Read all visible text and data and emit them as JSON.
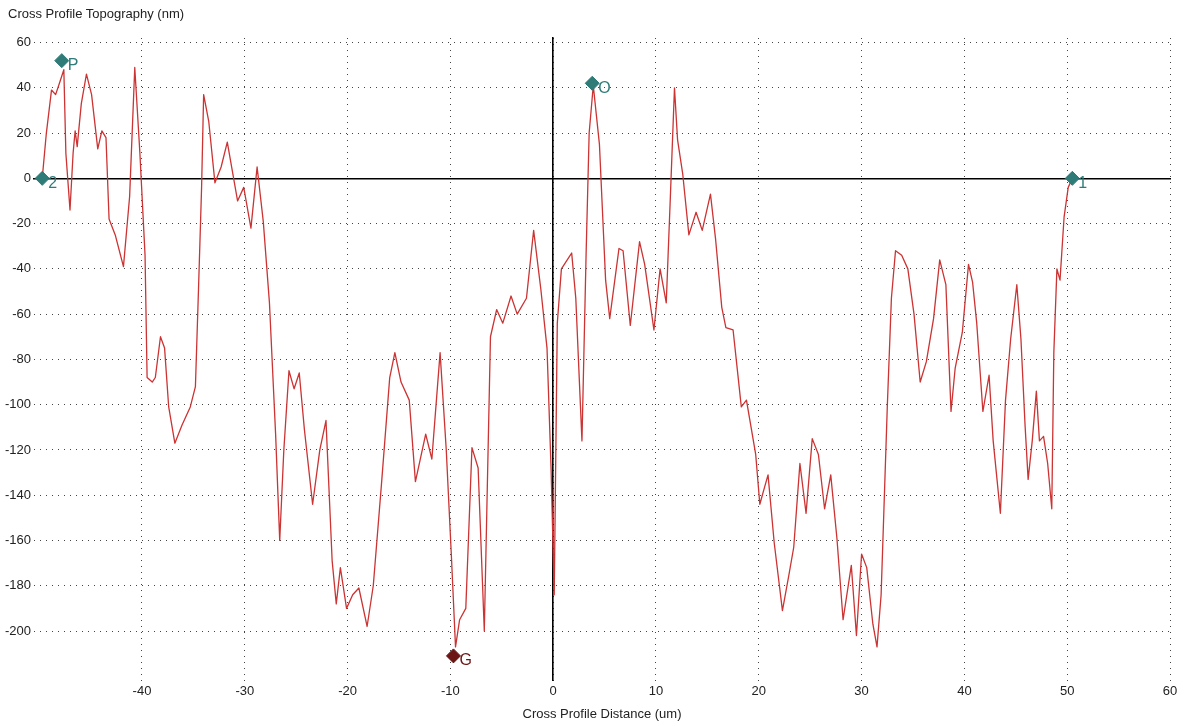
{
  "chart_data": {
    "type": "line",
    "ylabel": "Cross Profile Topography (nm)",
    "xlabel": "Cross Profile Distance (um)",
    "xlim": [
      -50.5,
      60
    ],
    "xticks": [
      -40,
      -30,
      -20,
      -10,
      0,
      10,
      20,
      30,
      40,
      50,
      60
    ],
    "ylim": [
      -222,
      62
    ],
    "yticks": [
      -200,
      -180,
      -160,
      -140,
      -120,
      -100,
      -80,
      -60,
      -40,
      -20,
      0,
      20,
      40,
      60
    ],
    "grid": true,
    "legend": false,
    "series": [
      {
        "color": "#cc3333",
        "marker": "none",
        "x": [
          -49.7,
          -49.3,
          -48.8,
          -48.4,
          -48.1,
          -47.6,
          -47.4,
          -47.0,
          -46.7,
          -46.5,
          -46.3,
          -45.9,
          -45.4,
          -44.9,
          -44.3,
          -43.9,
          -43.5,
          -43.2,
          -42.6,
          -41.8,
          -41.2,
          -40.7,
          -40.2,
          -39.7,
          -39.5,
          -39.0,
          -38.7,
          -38.2,
          -37.8,
          -37.4,
          -36.8,
          -36.1,
          -35.3,
          -34.8,
          -34.5,
          -34.2,
          -34.0,
          -33.5,
          -32.9,
          -32.3,
          -31.7,
          -30.7,
          -30.1,
          -29.4,
          -28.8,
          -28.2,
          -27.6,
          -27.0,
          -26.6,
          -26.2,
          -25.7,
          -25.2,
          -24.7,
          -24.2,
          -23.4,
          -22.7,
          -22.1,
          -21.5,
          -21.1,
          -20.7,
          -20.1,
          -19.5,
          -18.9,
          -18.1,
          -17.5,
          -16.7,
          -15.9,
          -15.4,
          -14.8,
          -14.0,
          -13.4,
          -12.4,
          -11.8,
          -11.0,
          -10.4,
          -9.9,
          -9.5,
          -9.1,
          -8.5,
          -7.9,
          -7.3,
          -6.7,
          -6.1,
          -5.5,
          -4.9,
          -4.1,
          -3.5,
          -2.6,
          -1.9,
          -1.2,
          -0.6,
          -0.2,
          0.1,
          0.4,
          0.8,
          1.8,
          2.2,
          2.8,
          3.2,
          3.5,
          3.9,
          4.5,
          5.1,
          5.5,
          6.4,
          6.8,
          7.5,
          8.4,
          8.9,
          9.8,
          10.4,
          11.0,
          11.4,
          11.8,
          12.1,
          12.6,
          13.2,
          13.9,
          14.5,
          15.3,
          15.8,
          16.4,
          16.8,
          17.5,
          18.3,
          18.8,
          19.7,
          20.1,
          20.9,
          21.5,
          22.3,
          22.9,
          23.4,
          24.0,
          24.6,
          25.2,
          25.8,
          26.4,
          27.0,
          27.6,
          28.2,
          29.0,
          29.5,
          30.0,
          30.5,
          31.1,
          31.5,
          31.9,
          32.5,
          32.9,
          33.3,
          33.9,
          34.5,
          35.1,
          35.7,
          36.3,
          37.0,
          37.6,
          38.2,
          38.7,
          39.1,
          39.8,
          40.4,
          40.8,
          41.2,
          41.8,
          42.4,
          42.8,
          43.5,
          44.0,
          44.5,
          45.1,
          45.5,
          45.9,
          46.2,
          46.6,
          47.0,
          47.3,
          47.7,
          48.1,
          48.5,
          48.7,
          49.0,
          49.3,
          49.7,
          50.1,
          50.5
        ],
        "values": [
          0,
          20,
          39,
          37,
          41,
          48,
          11,
          -14,
          11,
          21,
          14,
          33,
          46,
          37,
          13,
          21,
          18,
          -18,
          -25,
          -39,
          -8,
          49,
          11,
          -34,
          -88,
          -90,
          -88,
          -70,
          -75,
          -101,
          -117,
          -109,
          -101,
          -92,
          -49,
          -4,
          37,
          25,
          -2,
          5,
          16,
          -10,
          -4,
          -22,
          5,
          -19,
          -55,
          -113,
          -160,
          -120,
          -85,
          -93,
          -86,
          -111,
          -144,
          -120,
          -107,
          -169,
          -188,
          -172,
          -190,
          -184,
          -181,
          -198,
          -180,
          -135,
          -88,
          -77,
          -90,
          -98,
          -134,
          -113,
          -124,
          -77,
          -120,
          -167,
          -207,
          -195,
          -190,
          -119,
          -128,
          -200,
          -70,
          -58,
          -64,
          -52,
          -60,
          -53,
          -23,
          -49,
          -75,
          -129,
          -184,
          -64,
          -40,
          -33,
          -53,
          -116,
          -34,
          20,
          41,
          15,
          -45,
          -62,
          -31,
          -32,
          -65,
          -28,
          -38,
          -67,
          -40,
          -55,
          -8,
          40,
          17,
          2,
          -25,
          -15,
          -23,
          -7,
          -27,
          -57,
          -66,
          -67,
          -101,
          -98,
          -122,
          -144,
          -131,
          -161,
          -191,
          -176,
          -163,
          -126,
          -148,
          -115,
          -122,
          -146,
          -131,
          -159,
          -195,
          -171,
          -202,
          -166,
          -172,
          -197,
          -207,
          -184,
          -101,
          -53,
          -32,
          -34,
          -40,
          -60,
          -90,
          -81,
          -62,
          -36,
          -47,
          -103,
          -84,
          -68,
          -38,
          -46,
          -64,
          -103,
          -87,
          -116,
          -148,
          -98,
          -71,
          -47,
          -71,
          -109,
          -133,
          -116,
          -94,
          -116,
          -114,
          -126,
          -146,
          -77,
          -40,
          -45,
          -17,
          -4,
          0
        ]
      },
      {
        "type": "scatter",
        "marker": "diamond",
        "x": [
          -49.7,
          -47.8,
          3.8,
          50.5,
          -9.7
        ],
        "values": [
          0,
          52,
          42,
          0,
          -211
        ],
        "colors": [
          "#2e7b78",
          "#2e7b78",
          "#2e7b78",
          "#2e7b78",
          "#6b1515"
        ]
      }
    ],
    "annotations": [
      {
        "text": "2",
        "x": -49.7,
        "y": 0
      },
      {
        "text": "P",
        "x": -47.8,
        "y": 52
      },
      {
        "text": "O",
        "x": 3.8,
        "y": 42
      },
      {
        "text": "1",
        "x": 50.5,
        "y": 0
      },
      {
        "text": "G",
        "x": -9.7,
        "y": -211
      }
    ]
  }
}
